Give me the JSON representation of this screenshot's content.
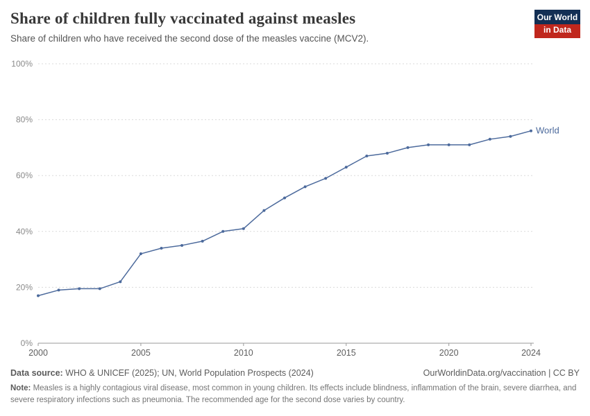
{
  "header": {
    "title": "Share of children fully vaccinated against measles",
    "subtitle": "Share of children who have received the second dose of the measles vaccine (MCV2).",
    "logo": {
      "line1": "Our World",
      "line2": "in Data",
      "bg_color": "#132f54",
      "accent_color": "#c0271d"
    }
  },
  "chart_data": {
    "type": "line",
    "title": "Share of children fully vaccinated against measles",
    "xlabel": "",
    "ylabel": "",
    "xlim": [
      2000,
      2024
    ],
    "ylim": [
      0,
      100
    ],
    "grid": "horizontal-dashed",
    "legend_position": "end-of-line-label",
    "x": [
      2000,
      2001,
      2002,
      2003,
      2004,
      2005,
      2006,
      2007,
      2008,
      2009,
      2010,
      2011,
      2012,
      2013,
      2014,
      2015,
      2016,
      2017,
      2018,
      2019,
      2020,
      2021,
      2022,
      2023,
      2024
    ],
    "series": [
      {
        "name": "World",
        "color": "#4C6A9C",
        "values": [
          17,
          19,
          19.5,
          19.5,
          22,
          32,
          34,
          35,
          36.5,
          40,
          41,
          47.5,
          52,
          56,
          59,
          63,
          67,
          68,
          70,
          71,
          71,
          71,
          73,
          74,
          76
        ]
      }
    ],
    "y_ticks": [
      {
        "value": 0,
        "label": "0%"
      },
      {
        "value": 20,
        "label": "20%"
      },
      {
        "value": 40,
        "label": "40%"
      },
      {
        "value": 60,
        "label": "60%"
      },
      {
        "value": 80,
        "label": "80%"
      },
      {
        "value": 100,
        "label": "100%"
      }
    ],
    "x_ticks": [
      {
        "value": 2000,
        "label": "2000"
      },
      {
        "value": 2005,
        "label": "2005"
      },
      {
        "value": 2010,
        "label": "2010"
      },
      {
        "value": 2015,
        "label": "2015"
      },
      {
        "value": 2020,
        "label": "2020"
      },
      {
        "value": 2024,
        "label": "2024"
      }
    ]
  },
  "footer": {
    "source_label": "Data source:",
    "source_text": " WHO & UNICEF (2025); UN, World Population Prospects (2024)",
    "cc_text": "OurWorldinData.org/vaccination | CC BY",
    "note_label": "Note:",
    "note_text": " Measles is a highly contagious viral disease, most common in young children. Its effects include blindness, inflammation of the brain, severe diarrhea, and severe respiratory infections such as pneumonia. The recommended age for the second dose varies by country."
  }
}
